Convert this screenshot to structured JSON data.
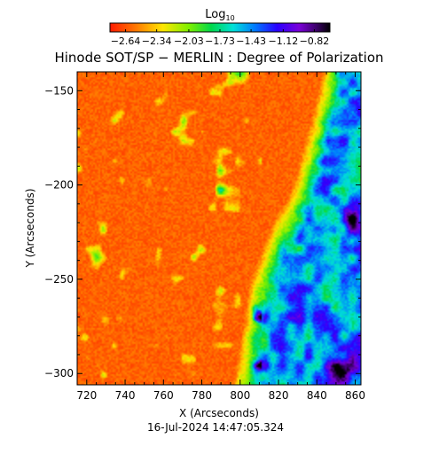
{
  "chart_data": {
    "type": "heatmap",
    "title": "Hinode SOT/SP − MERLIN : Degree of Polarization",
    "xlabel": "X (Arcseconds)",
    "ylabel": "Y (Arcseconds)",
    "timestamp": "16-Jul-2024 14:47:05.324",
    "colorbar": {
      "label_base": "Log",
      "label_sub": "10",
      "range": [
        -2.79,
        -0.67
      ],
      "tick_values": [
        -2.64,
        -2.34,
        -2.03,
        -1.73,
        -1.43,
        -1.12,
        -0.82
      ],
      "tick_labels": [
        "−2.64",
        "−2.34",
        "−2.03",
        "−1.73",
        "−1.43",
        "−1.12",
        "−0.82"
      ],
      "colormap": "rainbow (red → yellow → green → cyan → blue → violet → black)"
    },
    "xlim": [
      715,
      863
    ],
    "ylim": [
      -306,
      -140
    ],
    "x_ticks": [
      720,
      740,
      760,
      780,
      800,
      820,
      840,
      860
    ],
    "y_ticks": [
      -150,
      -200,
      -250,
      -300
    ],
    "structure": {
      "background": "quiet-Sun polarization near log10 ≈ −2.6 (red/orange) over most of the field",
      "network_patches": "scattered yellow/green/blue patches (≈ −2.2 to −1.5) at X ≈ 725–810",
      "active_band": "diagonal band of elevated polarization (green/cyan/blue, ≈ −2.0 to −1.0) along the right edge, from X ≈ 840 at Y ≈ −150 to X ≈ 790 at Y ≈ −300",
      "peaks": "dark blue/violet (≈ −1.0 to −0.8) near X ≈ 855–862, Y ≈ −210 and Y ≈ −290 to −305"
    }
  },
  "colors": {
    "text": "#000000",
    "frame": "#000000"
  }
}
